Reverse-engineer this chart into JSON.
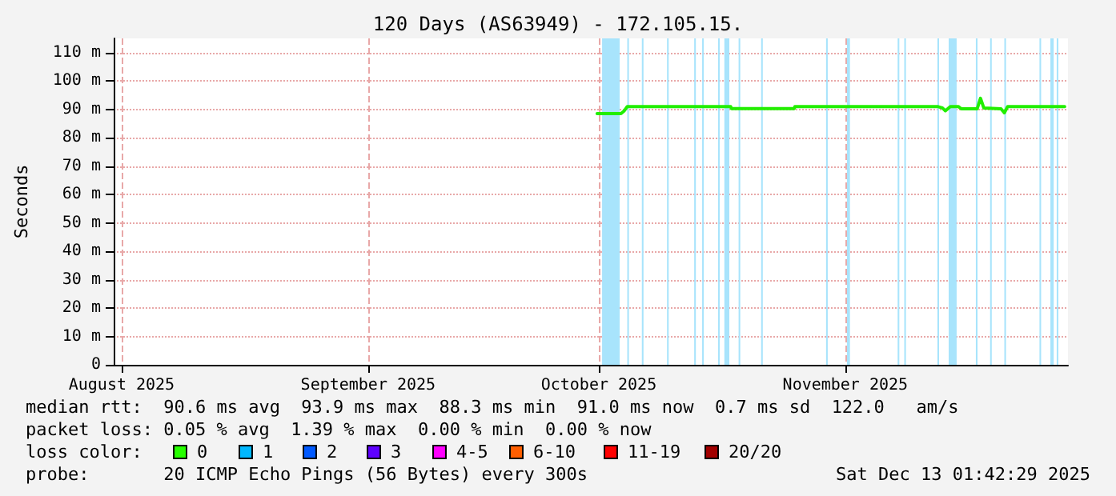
{
  "chart_data": {
    "type": "line",
    "title": "120 Days (AS63949) - 172.105.15.",
    "ylabel": "Seconds",
    "x": [
      "2025-10-14T19:00",
      "2025-10-17T19:00",
      "2025-10-18T05:00",
      "2025-10-18T14:00",
      "2025-10-31T14:00",
      "2025-10-31T16:00",
      "2025-11-08T14:00",
      "2025-11-08T16:00",
      "2025-11-26T14:00",
      "2025-11-27T05:00",
      "2025-11-27T14:00",
      "2025-11-28T05:00",
      "2025-11-29T05:00",
      "2025-11-29T14:00",
      "2025-12-01T14:00",
      "2025-12-02T00:00",
      "2025-12-02T10:00",
      "2025-12-04T14:00",
      "2025-12-05T00:00",
      "2025-12-05T10:00",
      "2025-12-12T14:00"
    ],
    "series": [
      {
        "color": "#22ee00",
        "values": [
          88.5,
          88.5,
          89.5,
          91,
          91,
          90.3,
          90.3,
          91,
          91,
          90.5,
          89.5,
          91,
          91,
          90.2,
          90.2,
          93.9,
          90.5,
          90.2,
          88.8,
          91,
          91
        ]
      }
    ],
    "xlim": [
      "2025-08-15",
      "2025-12-13"
    ],
    "xticks": [
      {
        "value": "2025-08-16",
        "label": "August 2025"
      },
      {
        "value": "2025-09-16",
        "label": "September 2025"
      },
      {
        "value": "2025-10-15",
        "label": "October 2025"
      },
      {
        "value": "2025-11-15",
        "label": "November 2025"
      }
    ],
    "ylim": [
      0,
      115
    ],
    "yticks": [
      0,
      {
        "value": 10,
        "label": "10 m"
      },
      {
        "value": 20,
        "label": "20 m"
      },
      {
        "value": 30,
        "label": "30 m"
      },
      {
        "value": 40,
        "label": "40 m"
      },
      {
        "value": 50,
        "label": "50 m"
      },
      {
        "value": 60,
        "label": "60 m"
      },
      {
        "value": 70,
        "label": "70 m"
      },
      {
        "value": 80,
        "label": "80 m"
      },
      {
        "value": 90,
        "label": "90 m"
      },
      {
        "value": 100,
        "label": "100 m"
      },
      {
        "value": 110,
        "label": "110 m"
      }
    ],
    "bands": [
      {
        "axis": "x",
        "from": "2025-10-15T10:00",
        "to": "2025-10-17T15:00",
        "color": "#a8e4fc"
      },
      {
        "axis": "x",
        "from": "2025-10-18T14:00",
        "to": "2025-10-18T19:00",
        "color": "#a8e4fc"
      },
      {
        "axis": "x",
        "from": "2025-10-20T10:00",
        "to": "2025-10-20T15:00",
        "color": "#a8e4fc"
      },
      {
        "axis": "x",
        "from": "2025-10-23T14:00",
        "to": "2025-10-23T19:00",
        "color": "#a8e4fc"
      },
      {
        "axis": "x",
        "from": "2025-10-27T00:00",
        "to": "2025-10-27T05:00",
        "color": "#a8e4fc"
      },
      {
        "axis": "x",
        "from": "2025-10-28T00:00",
        "to": "2025-10-28T05:00",
        "color": "#a8e4fc"
      },
      {
        "axis": "x",
        "from": "2025-10-30T00:00",
        "to": "2025-10-30T05:00",
        "color": "#a8e4fc"
      },
      {
        "axis": "x",
        "from": "2025-10-30T19:00",
        "to": "2025-10-31T10:00",
        "color": "#a8e4fc"
      },
      {
        "axis": "x",
        "from": "2025-11-01T14:00",
        "to": "2025-11-01T19:00",
        "color": "#a8e4fc"
      },
      {
        "axis": "x",
        "from": "2025-11-04T10:00",
        "to": "2025-11-04T15:00",
        "color": "#a8e4fc"
      },
      {
        "axis": "x",
        "from": "2025-11-12T14:00",
        "to": "2025-11-12T19:00",
        "color": "#a8e4fc"
      },
      {
        "axis": "x",
        "from": "2025-11-15T05:00",
        "to": "2025-11-15T14:00",
        "color": "#a8e4fc"
      },
      {
        "axis": "x",
        "from": "2025-11-21T14:00",
        "to": "2025-11-21T19:00",
        "color": "#a8e4fc"
      },
      {
        "axis": "x",
        "from": "2025-11-22T10:00",
        "to": "2025-11-22T15:00",
        "color": "#a8e4fc"
      },
      {
        "axis": "x",
        "from": "2025-11-26T14:00",
        "to": "2025-11-26T19:00",
        "color": "#a8e4fc"
      },
      {
        "axis": "x",
        "from": "2025-11-28T00:00",
        "to": "2025-11-29T00:00",
        "color": "#a8e4fc"
      },
      {
        "axis": "x",
        "from": "2025-12-01T10:00",
        "to": "2025-12-01T15:00",
        "color": "#a8e4fc"
      },
      {
        "axis": "x",
        "from": "2025-12-03T05:00",
        "to": "2025-12-03T10:00",
        "color": "#a8e4fc"
      },
      {
        "axis": "x",
        "from": "2025-12-05T00:00",
        "to": "2025-12-05T05:00",
        "color": "#a8e4fc"
      },
      {
        "axis": "x",
        "from": "2025-12-09T10:00",
        "to": "2025-12-09T15:00",
        "color": "#a8e4fc"
      },
      {
        "axis": "x",
        "from": "2025-12-10T19:00",
        "to": "2025-12-11T05:00",
        "color": "#a8e4fc"
      },
      {
        "axis": "x",
        "from": "2025-12-11T14:00",
        "to": "2025-12-11T19:00",
        "color": "#a8e4fc"
      }
    ],
    "annotations": [
      "median rtt:  90.6 ms avg  93.9 ms max  88.3 ms min  91.0 ms now  0.7 ms sd  122.0   am/s",
      "packet loss: 0.05 % avg  1.39 % max  0.00 % min  0.00 % now",
      "loss color:",
      "0",
      "1",
      "2",
      "3",
      "4-5",
      "6-10",
      "11-19",
      "20/20",
      "probe:       20 ICMP Echo Pings (56 Bytes) every 300s",
      "Sat Dec 13 01:42:29 2025"
    ],
    "grid": true,
    "marker": "none",
    "line_style": "solid"
  }
}
